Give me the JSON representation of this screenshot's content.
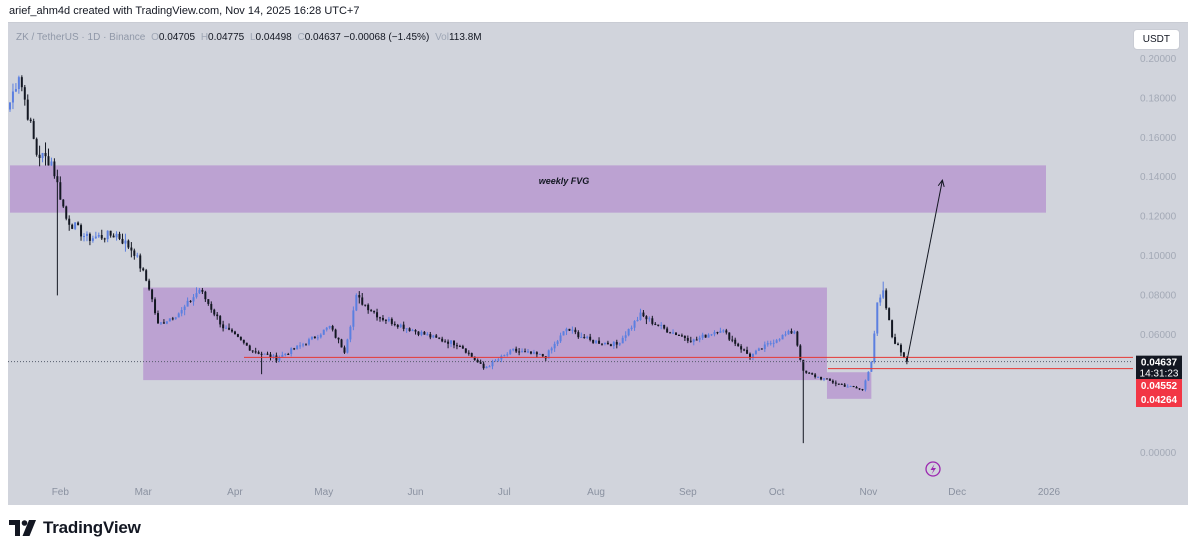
{
  "caption": "arief_ahm4d created with TradingView.com, Nov 14, 2025 16:28 UTC+7",
  "legend": {
    "symbol": "ZK / TetherUS · 1D · Binance",
    "open_key": "O",
    "open": "0.04705",
    "high_key": "H",
    "high": "0.04775",
    "low_key": "L",
    "low": "0.04498",
    "close_key": "C",
    "close": "0.04637",
    "change": "−0.00068 (−1.45%)",
    "vol_key": "Vol",
    "volume": "113.8M"
  },
  "currency_button": "USDT",
  "brand": "TradingView",
  "colors": {
    "background": "#d1d4dc",
    "zone": "#b48fcf",
    "candle_up": "#5b7fe0",
    "candle_down": "#131722",
    "price_line": "#e53935",
    "price_label_bg": "#131722",
    "level_label_bg": "#f23645"
  },
  "chart_data": {
    "type": "candlestick",
    "title": "",
    "y_axis": {
      "min": 0.0,
      "max": 0.2,
      "ticks": [
        "0.20000",
        "0.18000",
        "0.16000",
        "0.14000",
        "0.12000",
        "0.10000",
        "0.08000",
        "0.06000",
        "0.04000",
        "0.00000"
      ]
    },
    "x_axis": {
      "ticks": [
        "Feb",
        "Mar",
        "Apr",
        "May",
        "Jun",
        "Jul",
        "Aug",
        "Sep",
        "Oct",
        "Nov",
        "Dec",
        "2026"
      ]
    },
    "last_price": {
      "value": "0.04637",
      "countdown": "14:31:23"
    },
    "levels": [
      {
        "value": "0.04552"
      },
      {
        "value": "0.04264"
      }
    ],
    "zones": [
      {
        "label": "weekly FVG",
        "from": "2025-01-15",
        "to": "2025-12-31",
        "low": 0.122,
        "high": 0.146
      },
      {
        "label": "",
        "from": "2025-03-01",
        "to": "2025-10-18",
        "low": 0.037,
        "high": 0.084
      },
      {
        "label": "",
        "from": "2025-10-18",
        "to": "2025-11-02",
        "low": 0.0275,
        "high": 0.041
      }
    ],
    "projection": {
      "from": {
        "date": "2025-11-14",
        "price": 0.0466
      },
      "to": {
        "date": "2025-11-26",
        "price": 0.1385
      }
    },
    "key_points": [
      {
        "date": "2025-01-15",
        "price": 0.178
      },
      {
        "date": "2025-01-18",
        "price": 0.193
      },
      {
        "date": "2025-01-24",
        "price": 0.152
      },
      {
        "date": "2025-01-29",
        "price": 0.148
      },
      {
        "date": "2025-02-03",
        "price": 0.119
      },
      {
        "date": "2025-02-10",
        "price": 0.109
      },
      {
        "date": "2025-02-20",
        "price": 0.111
      },
      {
        "date": "2025-02-26",
        "price": 0.102
      },
      {
        "date": "2025-03-03",
        "price": 0.084
      },
      {
        "date": "2025-03-06",
        "price": 0.065
      },
      {
        "date": "2025-03-14",
        "price": 0.072
      },
      {
        "date": "2025-03-20",
        "price": 0.083
      },
      {
        "date": "2025-03-28",
        "price": 0.064
      },
      {
        "date": "2025-04-07",
        "price": 0.052
      },
      {
        "date": "2025-04-15",
        "price": 0.048
      },
      {
        "date": "2025-04-25",
        "price": 0.056
      },
      {
        "date": "2025-05-03",
        "price": 0.064
      },
      {
        "date": "2025-05-08",
        "price": 0.052
      },
      {
        "date": "2025-05-12",
        "price": 0.079
      },
      {
        "date": "2025-05-20",
        "price": 0.069
      },
      {
        "date": "2025-05-30",
        "price": 0.063
      },
      {
        "date": "2025-06-08",
        "price": 0.058
      },
      {
        "date": "2025-06-16",
        "price": 0.055
      },
      {
        "date": "2025-06-24",
        "price": 0.043
      },
      {
        "date": "2025-07-04",
        "price": 0.052
      },
      {
        "date": "2025-07-15",
        "price": 0.049
      },
      {
        "date": "2025-07-22",
        "price": 0.063
      },
      {
        "date": "2025-07-30",
        "price": 0.057
      },
      {
        "date": "2025-08-08",
        "price": 0.055
      },
      {
        "date": "2025-08-16",
        "price": 0.07
      },
      {
        "date": "2025-08-24",
        "price": 0.063
      },
      {
        "date": "2025-09-03",
        "price": 0.057
      },
      {
        "date": "2025-09-12",
        "price": 0.063
      },
      {
        "date": "2025-09-22",
        "price": 0.049
      },
      {
        "date": "2025-10-01",
        "price": 0.058
      },
      {
        "date": "2025-10-07",
        "price": 0.062
      },
      {
        "date": "2025-10-10",
        "price": 0.041
      },
      {
        "date": "2025-10-16",
        "price": 0.038
      },
      {
        "date": "2025-10-22",
        "price": 0.035
      },
      {
        "date": "2025-10-30",
        "price": 0.032
      },
      {
        "date": "2025-11-02",
        "price": 0.047
      },
      {
        "date": "2025-11-04",
        "price": 0.075
      },
      {
        "date": "2025-11-06",
        "price": 0.081
      },
      {
        "date": "2025-11-09",
        "price": 0.059
      },
      {
        "date": "2025-11-14",
        "price": 0.04637
      }
    ],
    "wick_extremes": [
      {
        "date": "2025-01-31",
        "low": 0.08
      },
      {
        "date": "2025-04-10",
        "low": 0.04
      },
      {
        "date": "2025-10-10",
        "low": 0.005
      },
      {
        "date": "2025-11-06",
        "high": 0.087
      }
    ]
  }
}
